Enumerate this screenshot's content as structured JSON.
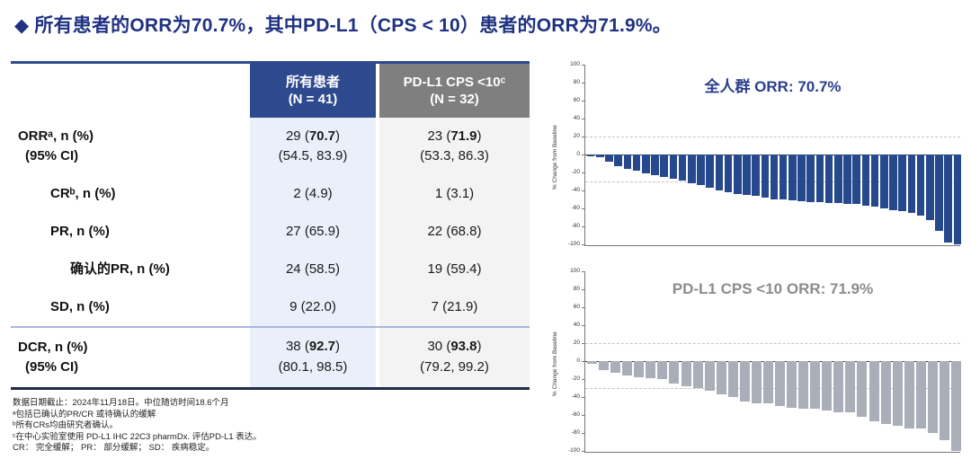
{
  "title": "◆ 所有患者的ORR为70.7%，其中PD-L1（CPS < 10）患者的ORR为71.9%。",
  "colors": {
    "title_navy": "#1F3282",
    "header_navy": "#2E4A8E",
    "header_gray": "#7F7F7F",
    "cell_light_blue": "#EAF0F9",
    "cell_light_gray": "#F3F3F3",
    "bar_navy": "#26488C",
    "bar_gray": "#A9AEB8"
  },
  "table": {
    "headers": {
      "all": {
        "line1": "所有患者",
        "line2": "(N = 41)"
      },
      "pdl1": {
        "line1": "PD-L1 CPS <10ᶜ",
        "line2": "(N = 32)"
      }
    },
    "rows": [
      {
        "label": "ORRᵃ, n (%)",
        "label2": "(95% CI)",
        "indent": 0,
        "all": "29 (**70.7**)",
        "all2": "(54.5, 83.9)",
        "pdl1": "23 (**71.9**)",
        "pdl12": "(53.3, 86.3)",
        "height": 64
      },
      {
        "label": "CRᵇ, n (%)",
        "indent": 1,
        "all": "2 (4.9)",
        "pdl1": "1 (3.1)",
        "height": 42
      },
      {
        "label": "PR, n (%)",
        "indent": 1,
        "all": "27 (65.9)",
        "pdl1": "22 (68.8)",
        "height": 42
      },
      {
        "label": "确认的PR, n (%)",
        "indent": 2,
        "all": "24 (58.5)",
        "pdl1": "19 (59.4)",
        "height": 42
      },
      {
        "label": "SD, n (%)",
        "indent": 1,
        "all": "9 (22.0)",
        "pdl1": "7 (21.9)",
        "height": 42,
        "divider_after": true
      },
      {
        "label": "DCR, n (%)",
        "label2": "(95% CI)",
        "indent": 0,
        "all": "38 (**92.7**)",
        "all2": "(80.1, 98.5)",
        "pdl1": "30 (**93.8**)",
        "pdl12": "(79.2, 99.2)",
        "height": 66
      }
    ]
  },
  "footnotes": [
    "数据日期截止：2024年11月18日。中位随访时间18.6个月",
    "ᵃ包括已确认的PR/CR 或待确认的缓解",
    "ᵇ所有CRs均由研究者确认。",
    "ᶜ在中心实验室使用 PD-L1 IHC 22C3 pharmDx. 评估PD-L1 表达。",
    "CR： 完全缓解； PR： 部分缓解； SD： 疾病稳定。"
  ],
  "chart_data": [
    {
      "type": "bar",
      "subtype": "waterfall",
      "title": "全人群 ORR: 70.7%",
      "title_color": "#2B3F8C",
      "bar_color": "#26488C",
      "xlabel": "",
      "ylabel": "% Change from Baseline",
      "ylim": [
        -100,
        100
      ],
      "yticks": [
        100,
        80,
        60,
        40,
        20,
        0,
        -20,
        -40,
        -60,
        -80,
        -100
      ],
      "reference_lines": [
        20,
        -30
      ],
      "grid": false,
      "legend": "none",
      "n_patients": 41,
      "values": [
        -2,
        -3,
        -8,
        -13,
        -16,
        -18,
        -21,
        -23,
        -25,
        -27,
        -29,
        -32,
        -34,
        -37,
        -40,
        -42,
        -44,
        -45,
        -46,
        -48,
        -50,
        -50,
        -51,
        -52,
        -53,
        -53,
        -54,
        -54,
        -55,
        -55,
        -57,
        -58,
        -60,
        -62,
        -63,
        -65,
        -68,
        -73,
        -85,
        -98,
        -100
      ]
    },
    {
      "type": "bar",
      "subtype": "waterfall",
      "title": "PD-L1 CPS <10 ORR: 71.9%",
      "title_color": "#8C8C8C",
      "bar_color": "#A9AEB8",
      "xlabel": "",
      "ylabel": "% Change from Baseline",
      "ylim": [
        -100,
        100
      ],
      "yticks": [
        100,
        80,
        60,
        40,
        20,
        0,
        -20,
        -40,
        -60,
        -80,
        -100
      ],
      "reference_lines": [
        20,
        -30
      ],
      "grid": false,
      "legend": "none",
      "n_patients": 32,
      "values": [
        -3,
        -10,
        -13,
        -16,
        -18,
        -19,
        -20,
        -25,
        -28,
        -30,
        -33,
        -37,
        -40,
        -45,
        -47,
        -47,
        -50,
        -52,
        -53,
        -53,
        -55,
        -57,
        -57,
        -62,
        -67,
        -70,
        -72,
        -75,
        -75,
        -80,
        -88,
        -100
      ]
    }
  ]
}
